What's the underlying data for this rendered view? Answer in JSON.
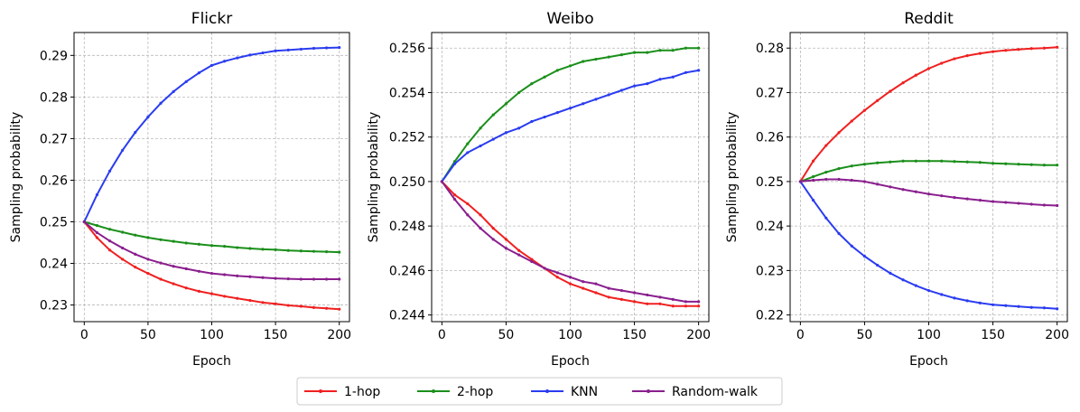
{
  "legend": {
    "placement": "bottom-center",
    "items": [
      {
        "label": "1-hop",
        "color": "#f02020"
      },
      {
        "label": "2-hop",
        "color": "#1a8f1a"
      },
      {
        "label": "KNN",
        "color": "#2a3cf0"
      },
      {
        "label": "Random-walk",
        "color": "#8a1e8e"
      }
    ]
  },
  "chart_data": [
    {
      "type": "line",
      "title": "Flickr",
      "xlabel": "Epoch",
      "ylabel": "Sampling probability",
      "xlim": [
        -8,
        208
      ],
      "ylim": [
        0.226,
        0.2955
      ],
      "xticks": [
        0,
        50,
        100,
        150,
        200
      ],
      "xtick_labels": [
        "0",
        "50",
        "100",
        "150",
        "200"
      ],
      "yticks": [
        0.23,
        0.24,
        0.25,
        0.26,
        0.27,
        0.28,
        0.29
      ],
      "ytick_labels": [
        "0.23",
        "0.24",
        "0.25",
        "0.26",
        "0.27",
        "0.28",
        "0.29"
      ],
      "grid": true,
      "x": [
        0,
        10,
        20,
        30,
        40,
        50,
        60,
        70,
        80,
        90,
        100,
        110,
        120,
        130,
        140,
        150,
        160,
        170,
        180,
        190,
        200
      ],
      "series": [
        {
          "name": "1-hop",
          "color": "#f02020",
          "values": [
            0.25,
            0.2462,
            0.2432,
            0.241,
            0.2391,
            0.2376,
            0.2362,
            0.2351,
            0.2341,
            0.2333,
            0.2327,
            0.2321,
            0.2316,
            0.2311,
            0.2306,
            0.2303,
            0.2299,
            0.2297,
            0.2294,
            0.2292,
            0.229
          ]
        },
        {
          "name": "2-hop",
          "color": "#1a8f1a",
          "values": [
            0.25,
            0.2491,
            0.2482,
            0.2475,
            0.2468,
            0.2462,
            0.2457,
            0.2453,
            0.2449,
            0.2446,
            0.2443,
            0.2441,
            0.2438,
            0.2436,
            0.2434,
            0.2433,
            0.2431,
            0.243,
            0.2429,
            0.2428,
            0.2427
          ]
        },
        {
          "name": "KNN",
          "color": "#2a3cf0",
          "values": [
            0.25,
            0.2565,
            0.2622,
            0.2672,
            0.2715,
            0.2752,
            0.2785,
            0.2813,
            0.2837,
            0.2858,
            0.2876,
            0.2886,
            0.2894,
            0.2901,
            0.2906,
            0.2911,
            0.2913,
            0.2915,
            0.2917,
            0.2918,
            0.2919
          ]
        },
        {
          "name": "Random-walk",
          "color": "#8a1e8e",
          "values": [
            0.25,
            0.2474,
            0.2454,
            0.2437,
            0.2422,
            0.241,
            0.2401,
            0.2393,
            0.2387,
            0.2381,
            0.2376,
            0.2373,
            0.237,
            0.2368,
            0.2366,
            0.2364,
            0.2363,
            0.2362,
            0.2362,
            0.2362,
            0.2362
          ]
        }
      ]
    },
    {
      "type": "line",
      "title": "Weibo",
      "xlabel": "Epoch",
      "ylabel": "Sampling probability",
      "xlim": [
        -8,
        208
      ],
      "ylim": [
        0.2437,
        0.2567
      ],
      "xticks": [
        0,
        50,
        100,
        150,
        200
      ],
      "xtick_labels": [
        "0",
        "50",
        "100",
        "150",
        "200"
      ],
      "yticks": [
        0.244,
        0.246,
        0.248,
        0.25,
        0.252,
        0.254,
        0.256
      ],
      "ytick_labels": [
        "0.244",
        "0.246",
        "0.248",
        "0.250",
        "0.252",
        "0.254",
        "0.256"
      ],
      "grid": true,
      "x": [
        0,
        10,
        20,
        30,
        40,
        50,
        60,
        70,
        80,
        90,
        100,
        110,
        120,
        130,
        140,
        150,
        160,
        170,
        180,
        190,
        200
      ],
      "series": [
        {
          "name": "1-hop",
          "color": "#f02020",
          "values": [
            0.25,
            0.2494,
            0.249,
            0.2485,
            0.2479,
            0.2474,
            0.2469,
            0.2465,
            0.2461,
            0.2457,
            0.2454,
            0.2452,
            0.245,
            0.2448,
            0.2447,
            0.2446,
            0.2445,
            0.2445,
            0.2444,
            0.2444,
            0.2444
          ]
        },
        {
          "name": "2-hop",
          "color": "#1a8f1a",
          "values": [
            0.25,
            0.2509,
            0.2517,
            0.2524,
            0.253,
            0.2535,
            0.254,
            0.2544,
            0.2547,
            0.255,
            0.2552,
            0.2554,
            0.2555,
            0.2556,
            0.2557,
            0.2558,
            0.2558,
            0.2559,
            0.2559,
            0.256,
            0.256
          ]
        },
        {
          "name": "KNN",
          "color": "#2a3cf0",
          "values": [
            0.25,
            0.2508,
            0.2513,
            0.2516,
            0.2519,
            0.2522,
            0.2524,
            0.2527,
            0.2529,
            0.2531,
            0.2533,
            0.2535,
            0.2537,
            0.2539,
            0.2541,
            0.2543,
            0.2544,
            0.2546,
            0.2547,
            0.2549,
            0.255
          ]
        },
        {
          "name": "Random-walk",
          "color": "#8a1e8e",
          "values": [
            0.25,
            0.2492,
            0.2485,
            0.2479,
            0.2474,
            0.247,
            0.2467,
            0.2464,
            0.2461,
            0.2459,
            0.2457,
            0.2455,
            0.2454,
            0.2452,
            0.2451,
            0.245,
            0.2449,
            0.2448,
            0.2447,
            0.2446,
            0.2446
          ]
        }
      ]
    },
    {
      "type": "line",
      "title": "Reddit",
      "xlabel": "Epoch",
      "ylabel": "Sampling probability",
      "xlim": [
        -8,
        208
      ],
      "ylim": [
        0.2185,
        0.2835
      ],
      "xticks": [
        0,
        50,
        100,
        150,
        200
      ],
      "xtick_labels": [
        "0",
        "50",
        "100",
        "150",
        "200"
      ],
      "yticks": [
        0.22,
        0.23,
        0.24,
        0.25,
        0.26,
        0.27,
        0.28
      ],
      "ytick_labels": [
        "0.22",
        "0.23",
        "0.24",
        "0.25",
        "0.26",
        "0.27",
        "0.28"
      ],
      "grid": true,
      "x": [
        0,
        10,
        20,
        30,
        40,
        50,
        60,
        70,
        80,
        90,
        100,
        110,
        120,
        130,
        140,
        150,
        160,
        170,
        180,
        190,
        200
      ],
      "series": [
        {
          "name": "1-hop",
          "color": "#f02020",
          "values": [
            0.25,
            0.2546,
            0.2581,
            0.261,
            0.2636,
            0.266,
            0.2682,
            0.2703,
            0.2722,
            0.2739,
            0.2754,
            0.2766,
            0.2776,
            0.2783,
            0.2788,
            0.2792,
            0.2795,
            0.2797,
            0.2799,
            0.28,
            0.2802
          ]
        },
        {
          "name": "2-hop",
          "color": "#1a8f1a",
          "values": [
            0.25,
            0.2511,
            0.2521,
            0.2529,
            0.2535,
            0.2539,
            0.2542,
            0.2544,
            0.2546,
            0.2546,
            0.2546,
            0.2546,
            0.2545,
            0.2544,
            0.2543,
            0.2541,
            0.254,
            0.2539,
            0.2538,
            0.2537,
            0.2537
          ]
        },
        {
          "name": "KNN",
          "color": "#2a3cf0",
          "values": [
            0.25,
            0.2458,
            0.2418,
            0.2383,
            0.2355,
            0.2332,
            0.2312,
            0.2294,
            0.2279,
            0.2266,
            0.2255,
            0.2246,
            0.2238,
            0.2232,
            0.2227,
            0.2223,
            0.2221,
            0.2219,
            0.2217,
            0.2216,
            0.2214
          ]
        },
        {
          "name": "Random-walk",
          "color": "#8a1e8e",
          "values": [
            0.25,
            0.2503,
            0.2505,
            0.2505,
            0.2503,
            0.25,
            0.2494,
            0.2488,
            0.2482,
            0.2477,
            0.2472,
            0.2468,
            0.2464,
            0.2461,
            0.2458,
            0.2455,
            0.2453,
            0.2451,
            0.2449,
            0.2447,
            0.2446
          ]
        }
      ]
    }
  ]
}
